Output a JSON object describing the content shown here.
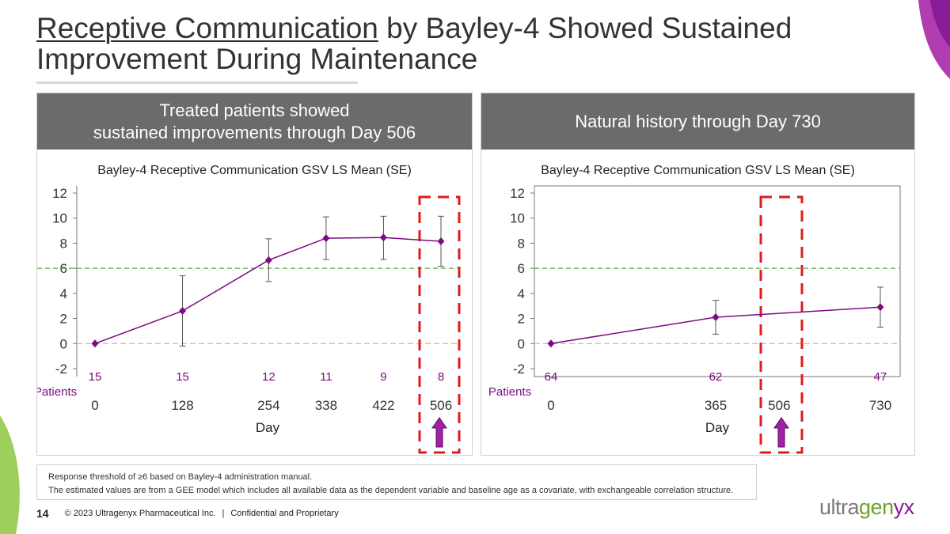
{
  "title": {
    "underlined": "Receptive Communication",
    "rest": " by Bayley-4 Showed Sustained Improvement During Maintenance"
  },
  "colors": {
    "series": "#7b0c82",
    "threshold": "#5aaa4a",
    "highlight": "#e01b1b",
    "arrow": "#a020a8",
    "header": "#6b6b6b"
  },
  "left_panel": {
    "header_line1": "Treated patients showed",
    "header_line2": "sustained improvements through Day 506"
  },
  "right_panel": {
    "header": "Natural history through Day 730"
  },
  "chart_data": [
    {
      "type": "line",
      "title": "Bayley-4 Receptive Communication GSV LS Mean (SE)",
      "xlabel": "Day",
      "ylabel": "",
      "x": [
        0,
        128,
        254,
        338,
        422,
        506
      ],
      "values": [
        0,
        2.6,
        6.65,
        8.4,
        8.45,
        8.15
      ],
      "error_low": [
        0,
        -0.2,
        4.95,
        6.7,
        6.7,
        6.15
      ],
      "error_high": [
        0,
        5.4,
        8.35,
        10.1,
        10.15,
        10.15
      ],
      "ylim": [
        -2,
        12
      ],
      "yticks": [
        "-2",
        "0",
        "2",
        "4",
        "6",
        "8",
        "10",
        "12"
      ],
      "xticks": [
        "0",
        "128",
        "254",
        "338",
        "422",
        "506"
      ],
      "threshold": 6,
      "patients_label": "Patients",
      "patients": [
        "15",
        "15",
        "12",
        "11",
        "9",
        "8"
      ],
      "highlight_day": "506"
    },
    {
      "type": "line",
      "title": "Bayley-4 Receptive Communication GSV LS Mean (SE)",
      "xlabel": "Day",
      "ylabel": "",
      "x": [
        0,
        365,
        730
      ],
      "values": [
        0,
        2.1,
        2.9
      ],
      "error_low": [
        0,
        0.75,
        1.3
      ],
      "error_high": [
        0,
        3.45,
        4.5
      ],
      "ylim": [
        -2,
        12
      ],
      "yticks": [
        "-2",
        "0",
        "2",
        "4",
        "6",
        "8",
        "10",
        "12"
      ],
      "xticks": [
        "0",
        "365",
        "506",
        "730"
      ],
      "threshold": 6,
      "patients_label": "Patients",
      "patients": [
        "64",
        "62",
        "47"
      ],
      "highlight_day": "506"
    }
  ],
  "footnote": {
    "line1": "Response threshold of ≥6 based on Bayley-4 administration manual.",
    "line2": "The estimated values are from a GEE model which includes all available data as the dependent variable and baseline age as a covariate, with exchangeable correlation structure."
  },
  "footer": {
    "page": "14",
    "copyright": "© 2023 Ultragenyx Pharmaceutical Inc.",
    "separator": "|",
    "confidential": "Confidential and Proprietary"
  },
  "logo": {
    "part1": "ultra",
    "part2": "gen",
    "part3": "y",
    "part4": "x"
  }
}
